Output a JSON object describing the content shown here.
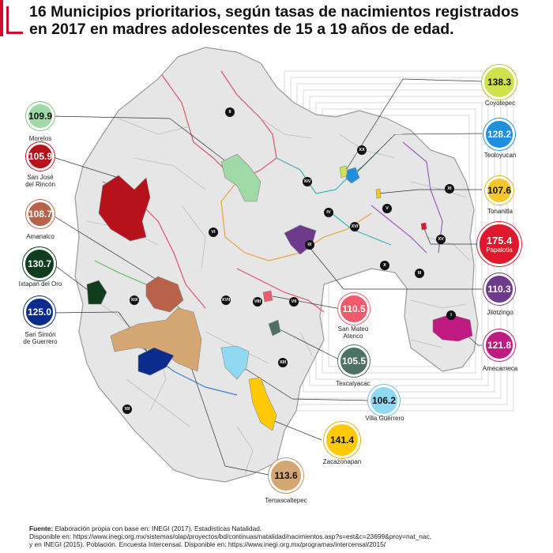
{
  "title": "16 Municipios prioritarios, según tasas de nacimientos registrados en 2017 en madres adolescentes de 15 a 19 años de edad.",
  "municipios": [
    {
      "id": "coyotepec",
      "name": "Coyotepec",
      "rate": "138.3",
      "color": "#cfe14b",
      "text_color": "#111111"
    },
    {
      "id": "teoloyucan",
      "name": "Teoloyucan",
      "rate": "128.2",
      "color": "#1f8fe0",
      "text_color": "#ffffff"
    },
    {
      "id": "tonanitla",
      "name": "Tonanitla",
      "rate": "107.6",
      "color": "#f7c72a",
      "text_color": "#111111"
    },
    {
      "id": "papalotla",
      "name": "Papalotla",
      "rate": "175.4",
      "color": "#e0182d",
      "text_color": "#ffffff"
    },
    {
      "id": "jilotzingo",
      "name": "Jilotzingo",
      "rate": "110.3",
      "color": "#6e3a8c",
      "text_color": "#ffffff"
    },
    {
      "id": "amecameca",
      "name": "Amecameca",
      "rate": "121.8",
      "color": "#bf1a82",
      "text_color": "#ffffff"
    },
    {
      "id": "morelos",
      "name": "Morelos",
      "rate": "109.9",
      "color": "#9ed9a6",
      "text_color": "#111111"
    },
    {
      "id": "san_jose_del_rincon",
      "name": "San José\ndel Rincón",
      "rate": "105.9",
      "color": "#b5121b",
      "text_color": "#ffffff"
    },
    {
      "id": "amanalco",
      "name": "Amanalco",
      "rate": "108.7",
      "color": "#b9624a",
      "text_color": "#ffffff"
    },
    {
      "id": "ixtapan_del_oro",
      "name": "Ixtapan del Oro",
      "rate": "130.7",
      "color": "#0f3d1d",
      "text_color": "#ffffff"
    },
    {
      "id": "san_simon_de_guerrero",
      "name": "San Simón\nde Guerrero",
      "rate": "125.0",
      "color": "#0b2c8c",
      "text_color": "#ffffff"
    },
    {
      "id": "san_mateo_atenco",
      "name": "San Mateo\nAtenco",
      "rate": "110.5",
      "color": "#f05a6b",
      "text_color": "#ffffff"
    },
    {
      "id": "texcalyacac",
      "name": "Texcalyacac",
      "rate": "105.5",
      "color": "#4e7165",
      "text_color": "#ffffff"
    },
    {
      "id": "villa_guerrero",
      "name": "Villa Guerrero",
      "rate": "106.2",
      "color": "#8fd9f2",
      "text_color": "#111111"
    },
    {
      "id": "zacazonapan",
      "name": "Zacazonapan",
      "rate": "141.4",
      "color": "#ffca05",
      "text_color": "#111111"
    },
    {
      "id": "temascaltepec",
      "name": "Temascaltepec",
      "rate": "113.6",
      "color": "#d4a672",
      "text_color": "#111111"
    }
  ],
  "regions": [
    "I",
    "II",
    "III",
    "IV",
    "V",
    "VI",
    "VII",
    "VIII",
    "IX",
    "X",
    "XI",
    "XII",
    "XIII",
    "XIV",
    "XV",
    "XVI",
    "XVII",
    "XVIII",
    "XIX",
    "XX"
  ],
  "footer": {
    "fuente_label": "Fuente:",
    "fuente_text": " Elaboración propia con base en: INEGI (2017). Estadísticas Natalidad.",
    "line2": "Disponible en: https://www.inegi.org.mx/sistemas/olap/proyectos/bd/continuas/natalidad/nacimientos.asp?s=est&c=23699&proy=nat_nac,",
    "line3": "y en INEGI (2015). Población. Encuesta Intercensal. Disponible en: https://www.inegi.org.mx/programas/intercensal/2015/"
  }
}
